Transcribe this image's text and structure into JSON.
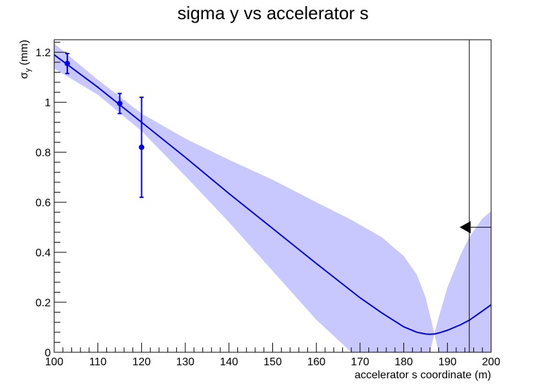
{
  "chart_data": {
    "type": "line",
    "title": "sigma y vs accelerator s",
    "xlabel": "accelerator s coordinate (m)",
    "ylabel": {
      "main": "σ",
      "sub": "y",
      "unit": " (mm)"
    },
    "xlim": [
      100,
      200
    ],
    "ylim": [
      0,
      1.25
    ],
    "x_ticks": [
      100,
      110,
      120,
      130,
      140,
      150,
      160,
      170,
      180,
      190,
      200
    ],
    "x_tick_labels": [
      "100",
      "110",
      "120",
      "130",
      "140",
      "150",
      "160",
      "170",
      "180",
      "190",
      "200"
    ],
    "y_ticks": [
      0,
      0.2,
      0.4,
      0.6,
      0.8,
      1.0,
      1.2
    ],
    "y_tick_labels": [
      "0",
      "0.2",
      "0.4",
      "0.6",
      "0.8",
      "1",
      "1.2"
    ],
    "grid": false,
    "colors": {
      "fit": "#0000dd",
      "band": "#c8c8ff",
      "points": "#0000ee",
      "marker": "#000000"
    },
    "measurements": [
      {
        "x": 103,
        "y": 1.155,
        "err": 0.04
      },
      {
        "x": 115,
        "y": 0.995,
        "err": 0.04
      },
      {
        "x": 120,
        "y": 0.82,
        "err": 0.2
      }
    ],
    "fit_curve": {
      "x": [
        100,
        110,
        120,
        130,
        140,
        150,
        160,
        170,
        175,
        180,
        183,
        185,
        186,
        187,
        188,
        190,
        193,
        195,
        198,
        200
      ],
      "y": [
        1.19,
        1.06,
        0.92,
        0.78,
        0.635,
        0.495,
        0.355,
        0.218,
        0.157,
        0.102,
        0.08,
        0.073,
        0.072,
        0.073,
        0.077,
        0.088,
        0.11,
        0.128,
        0.165,
        0.19
      ]
    },
    "error_band": {
      "x": [
        100,
        110,
        120,
        130,
        140,
        150,
        160,
        168,
        170,
        175,
        180,
        183,
        185,
        186,
        187,
        188,
        190,
        193,
        195,
        198,
        200
      ],
      "upper": [
        1.235,
        1.09,
        0.955,
        0.855,
        0.77,
        0.69,
        0.6,
        0.53,
        0.51,
        0.46,
        0.385,
        0.31,
        0.22,
        0.15,
        0.075,
        0.14,
        0.26,
        0.39,
        0.46,
        0.535,
        0.565
      ],
      "lower": [
        1.135,
        1.03,
        0.885,
        0.705,
        0.52,
        0.325,
        0.13,
        0.0,
        0.0,
        0.0,
        0.0,
        0.0,
        0.0,
        0.0,
        0.075,
        0.0,
        0.0,
        0.0,
        0.0,
        0.0,
        0.0
      ]
    },
    "marker_line_x": 195,
    "arrow_y": 0.5
  }
}
